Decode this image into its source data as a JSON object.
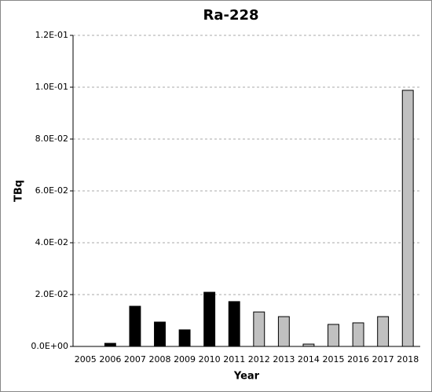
{
  "chart_data": {
    "type": "bar",
    "title": "Ra-228",
    "x_label": "Year",
    "y_label": "TBq",
    "categories": [
      "2005",
      "2006",
      "2007",
      "2008",
      "2009",
      "2010",
      "2011",
      "2012",
      "2013",
      "2014",
      "2015",
      "2016",
      "2017",
      "2018"
    ],
    "values": [
      0,
      0.0012,
      0.0155,
      0.0094,
      0.0064,
      0.0209,
      0.0173,
      0.0133,
      0.0115,
      0.0009,
      0.0085,
      0.0091,
      0.0115,
      0.0988
    ],
    "colors": [
      "#000000",
      "#000000",
      "#000000",
      "#000000",
      "#000000",
      "#000000",
      "#000000",
      "#c0c0c0",
      "#c0c0c0",
      "#c0c0c0",
      "#c0c0c0",
      "#c0c0c0",
      "#c0c0c0",
      "#c0c0c0"
    ],
    "ylim": [
      0,
      0.12
    ],
    "yticks": [
      {
        "value": 0,
        "label": "0.0E+00"
      },
      {
        "value": 0.02,
        "label": "2.0E-02"
      },
      {
        "value": 0.04,
        "label": "4.0E-02"
      },
      {
        "value": 0.06,
        "label": "6.0E-02"
      },
      {
        "value": 0.08,
        "label": "8.0E-02"
      },
      {
        "value": 0.1,
        "label": "1.0E-01"
      },
      {
        "value": 0.12,
        "label": "1.2E-01"
      }
    ],
    "grid": true
  }
}
